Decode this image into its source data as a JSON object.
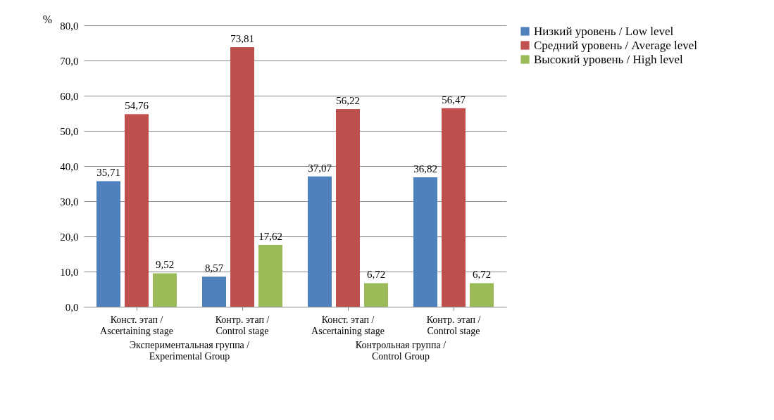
{
  "chart_data": {
    "type": "bar",
    "categories": [
      "Конст. этап / Ascertaining stage",
      "Контр. этап / Control stage",
      "Конст. этап / Ascertaining stage",
      "Контр. этап / Control stage"
    ],
    "series": [
      {
        "name": "Низкий уровень / Low level",
        "color": "#4f81bd",
        "values": [
          35.71,
          8.57,
          37.07,
          36.82
        ],
        "value_labels": [
          "35,71",
          "8,57",
          "37,07",
          "36,82"
        ]
      },
      {
        "name": "Средний уровень / Average level",
        "color": "#c0504d",
        "values": [
          54.76,
          73.81,
          56.22,
          56.47
        ],
        "value_labels": [
          "54,76",
          "73,81",
          "56,22",
          "56,47"
        ]
      },
      {
        "name": "Высокий уровень / High level",
        "color": "#9bbb59",
        "values": [
          9.52,
          17.62,
          6.72,
          6.72
        ],
        "value_labels": [
          "9,52",
          "17,62",
          "6,72",
          "6,72"
        ]
      }
    ],
    "ylabel": "%",
    "ylim": [
      0,
      80
    ],
    "yticks": [
      {
        "value": 0,
        "label": "0,0"
      },
      {
        "value": 10,
        "label": "10,0"
      },
      {
        "value": 20,
        "label": "20,0"
      },
      {
        "value": 30,
        "label": "30,0"
      },
      {
        "value": 40,
        "label": "40,0"
      },
      {
        "value": 50,
        "label": "50,0"
      },
      {
        "value": 60,
        "label": "60,0"
      },
      {
        "value": 70,
        "label": "70,0"
      },
      {
        "value": 80,
        "label": "80,0"
      }
    ],
    "annotations": [
      "Экспериментальная группа / Experimental Group",
      "Контрольная группа / Control Group"
    ],
    "grid": "y",
    "legend": "right"
  }
}
